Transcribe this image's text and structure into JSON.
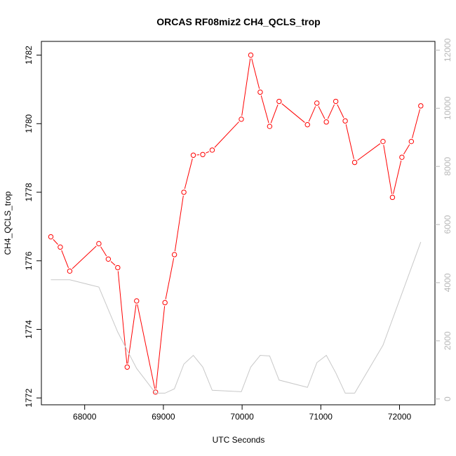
{
  "chart_data": {
    "type": "line",
    "title": "ORCAS RF08miz2 CH4_QCLS_trop",
    "xlabel": "UTC Seconds",
    "ylabel": "CH4_QCLS_trop",
    "xlim": [
      67450,
      72450
    ],
    "ylim": [
      1771.8,
      1782.4
    ],
    "y2lim": [
      -200,
      12300
    ],
    "x_ticks": [
      68000,
      69000,
      70000,
      71000,
      72000
    ],
    "y_ticks": [
      1772,
      1774,
      1776,
      1778,
      1780,
      1782
    ],
    "y2_ticks": [
      0,
      2000,
      4000,
      6000,
      8000,
      10000,
      12000
    ],
    "series": [
      {
        "axis": "left",
        "color": "#ff0000",
        "marker": "open-circle",
        "x": [
          67570,
          67690,
          67810,
          68180,
          68300,
          68420,
          68540,
          68660,
          68900,
          69020,
          69140,
          69260,
          69380,
          69500,
          69620,
          69990,
          70110,
          70230,
          70350,
          70470,
          70830,
          70950,
          71070,
          71190,
          71310,
          71430,
          71790,
          71910,
          72030,
          72150,
          72270
        ],
        "y": [
          1776.7,
          1776.4,
          1775.7,
          1776.5,
          1776.05,
          1775.8,
          1772.9,
          1774.83,
          1772.17,
          1774.78,
          1776.18,
          1778.0,
          1779.08,
          1779.1,
          1779.23,
          1780.13,
          1782.0,
          1780.92,
          1779.92,
          1780.65,
          1779.97,
          1780.6,
          1780.05,
          1780.65,
          1780.08,
          1778.87,
          1779.48,
          1777.85,
          1779.02,
          1779.48,
          1780.52
        ]
      },
      {
        "axis": "right",
        "color": "#c8c8c8",
        "marker": "none",
        "x": [
          67570,
          67810,
          68180,
          68420,
          68660,
          68900,
          69020,
          69140,
          69260,
          69380,
          69500,
          69620,
          69990,
          70110,
          70230,
          70350,
          70470,
          70830,
          70950,
          71070,
          71190,
          71310,
          71430,
          71790,
          72270
        ],
        "y": [
          4100,
          4100,
          3850,
          2300,
          1050,
          200,
          200,
          350,
          1200,
          1500,
          1100,
          300,
          250,
          1100,
          1500,
          1480,
          650,
          400,
          1250,
          1500,
          900,
          200,
          200,
          1850,
          5400
        ]
      }
    ]
  }
}
